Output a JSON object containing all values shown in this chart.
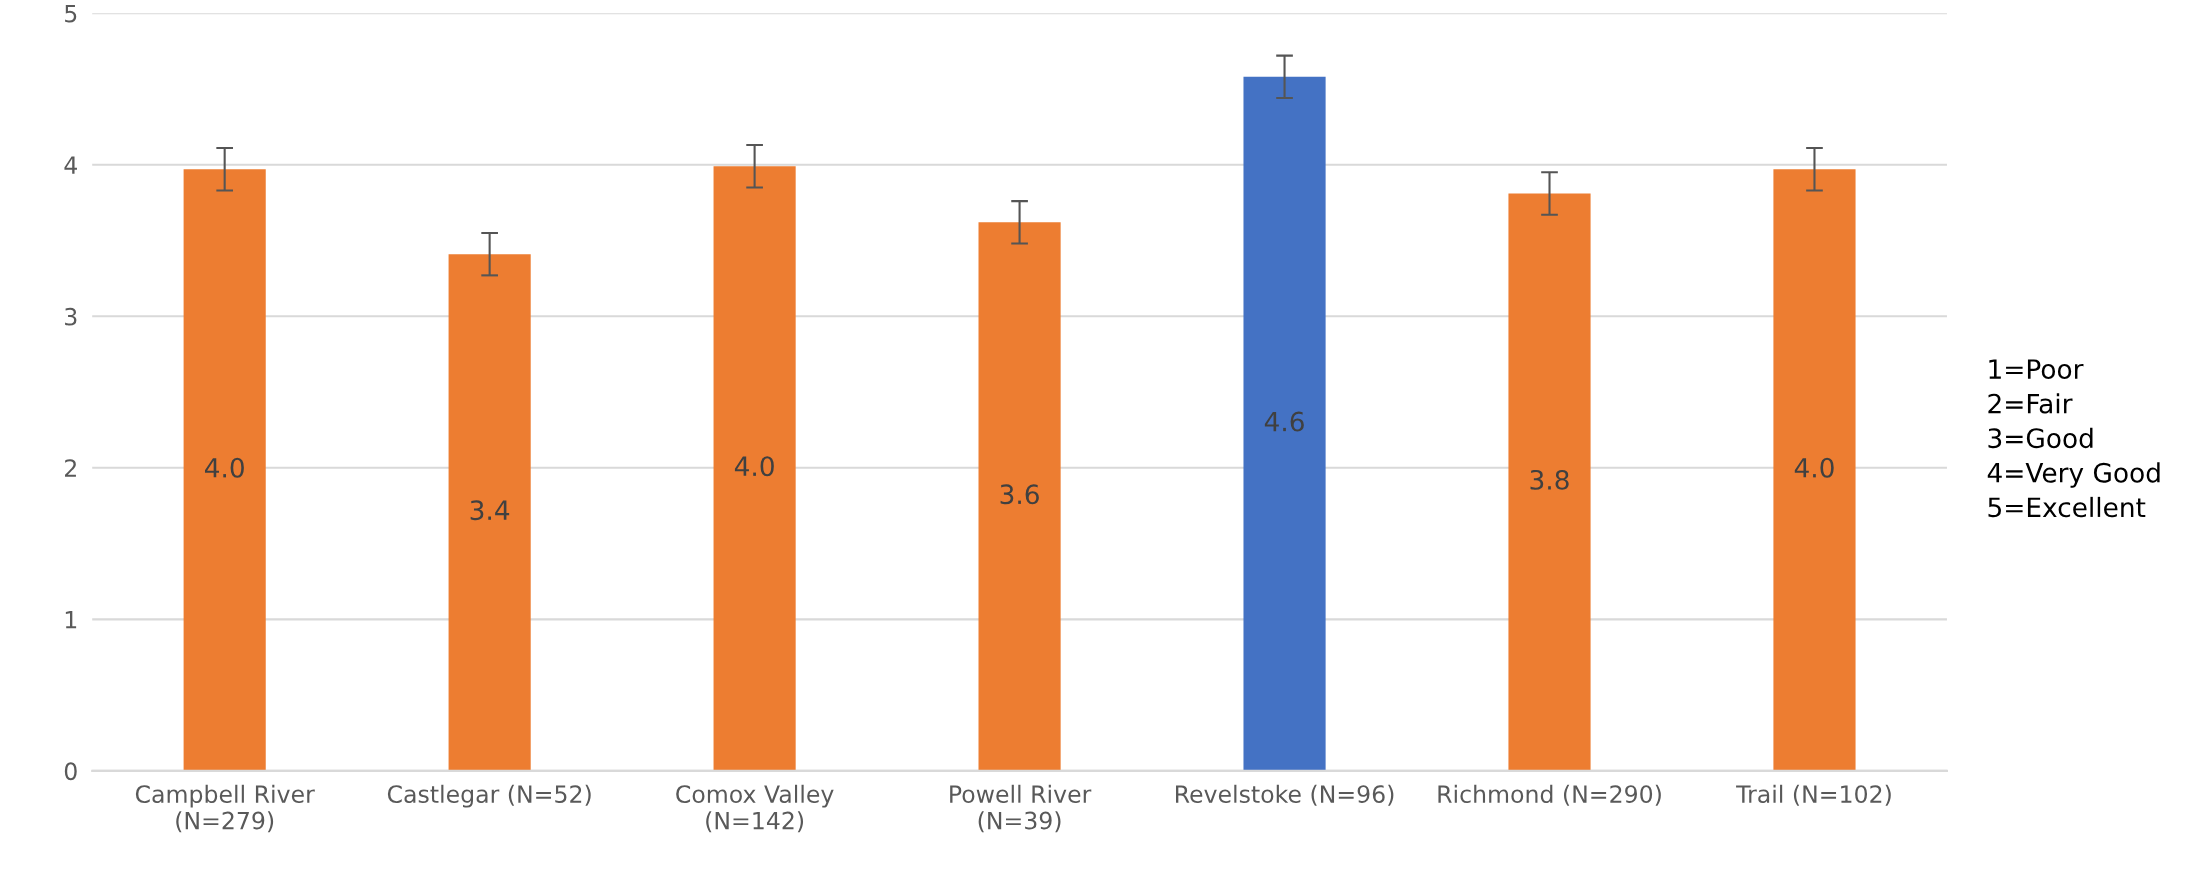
{
  "chart_data": {
    "type": "bar",
    "categories": [
      "Campbell River\n(N=279)",
      "Castlegar (N=52)",
      "Comox Valley\n(N=142)",
      "Powell River\n(N=39)",
      "Revelstoke (N=96)",
      "Richmond (N=290)",
      "Trail (N=102)"
    ],
    "values": [
      3.97,
      3.41,
      3.99,
      3.62,
      4.58,
      3.81,
      3.97
    ],
    "errors": [
      0.14,
      0.14,
      0.14,
      0.14,
      0.14,
      0.14,
      0.14
    ],
    "value_labels": [
      "4.0",
      "3.4",
      "4.0",
      "3.6",
      "4.6",
      "3.8",
      "4.0"
    ],
    "colors": [
      "#ed7d31",
      "#ed7d31",
      "#ed7d31",
      "#ed7d31",
      "#4472c4",
      "#ed7d31",
      "#ed7d31"
    ],
    "ylim": [
      0,
      5
    ],
    "yticks": [
      0,
      1,
      2,
      3,
      4,
      5
    ],
    "grid": "y",
    "annotations": [
      "1=Poor\n2=Fair\n3=Good\n4=Very Good\n5=Excellent"
    ]
  }
}
